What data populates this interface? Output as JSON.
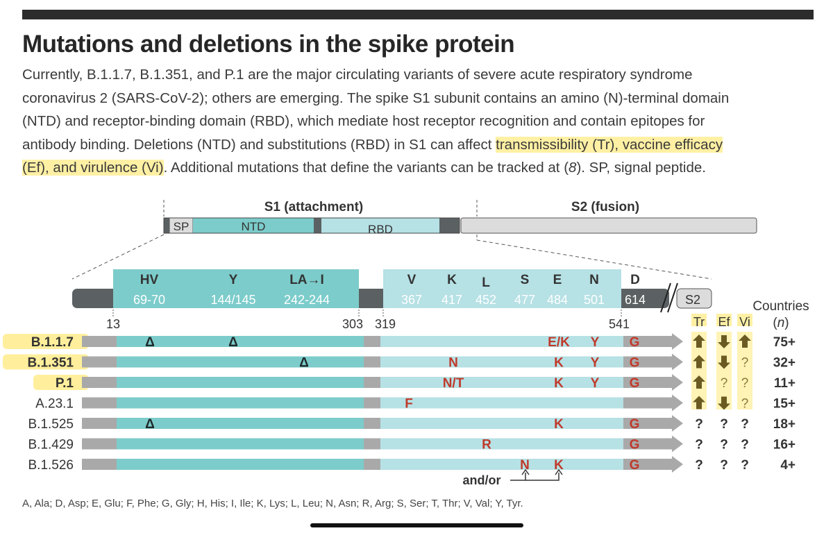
{
  "title": "Mutations and deletions in the spike protein",
  "description": {
    "line1": "Currently, B.1.1.7, B.1.351, and P.1 are the major circulating variants of severe acute respiratory syndrome",
    "line2": "coronavirus 2 (SARS-CoV-2); others are emerging. The spike S1 subunit contains an amino (N)-terminal domain",
    "line3": "(NTD) and receptor-binding domain (RBD), which mediate host receptor recognition and contain epitopes for",
    "line4a": "antibody binding. Deletions (NTD) and substitutions (RBD) in S1 can affect ",
    "line4b": "transmissibility (Tr), vaccine efficacy",
    "line5a": "(Ef), and virulence (Vi)",
    "line5b": ". Additional mutations that define the variants can be tracked at (",
    "line5c": "8",
    "line5d": "). SP, signal peptide."
  },
  "overview": {
    "s1_label": "S1 (attachment)",
    "s2_label": "S2 (fusion)",
    "sp": "SP",
    "ntd": "NTD",
    "rbd": "RBD"
  },
  "detail": {
    "ntd_sites": [
      {
        "aa": "HV",
        "pos": "69-70"
      },
      {
        "aa": "Y",
        "pos": "144/145"
      },
      {
        "aa": "LA→I",
        "pos": "242-244"
      }
    ],
    "rbd_sites": [
      {
        "aa": "V",
        "pos": "367"
      },
      {
        "aa": "K",
        "pos": "417"
      },
      {
        "aa": "L",
        "pos": "452"
      },
      {
        "aa": "S",
        "pos": "477"
      },
      {
        "aa": "E",
        "pos": "484"
      },
      {
        "aa": "N",
        "pos": "501"
      }
    ],
    "d614": {
      "aa": "D",
      "pos": "614"
    },
    "s2": "S2",
    "boundaries": [
      "13",
      "303",
      "319",
      "541"
    ]
  },
  "effects_header": {
    "tr": "Tr",
    "ef": "Ef",
    "vi": "Vi",
    "countries": "Countries",
    "n": "(n)"
  },
  "variants": [
    {
      "name": "B.1.1.7",
      "bold": true,
      "highlight": true,
      "ntd": [
        {
          "col": "hv",
          "text": "Δ"
        },
        {
          "col": "y",
          "text": "Δ"
        }
      ],
      "rbd": [
        {
          "col": "e484",
          "text": "E/K"
        },
        {
          "col": "n501",
          "text": "Y"
        }
      ],
      "g614": "G",
      "tr": "up",
      "ef": "down",
      "vi": "up",
      "countries": "75+"
    },
    {
      "name": "B.1.351",
      "bold": true,
      "highlight": true,
      "ntd": [
        {
          "col": "la",
          "text": "Δ"
        }
      ],
      "rbd": [
        {
          "col": "k417",
          "text": "N"
        },
        {
          "col": "e484",
          "text": "K"
        },
        {
          "col": "n501",
          "text": "Y"
        }
      ],
      "g614": "G",
      "tr": "up",
      "ef": "down",
      "vi": "?",
      "countries": "32+"
    },
    {
      "name": "P.1",
      "bold": true,
      "highlight": true,
      "ntd": [],
      "rbd": [
        {
          "col": "k417",
          "text": "N/T"
        },
        {
          "col": "e484",
          "text": "K"
        },
        {
          "col": "n501",
          "text": "Y"
        }
      ],
      "g614": "G",
      "tr": "up",
      "ef": "?",
      "vi": "?",
      "countries": "11+"
    },
    {
      "name": "A.23.1",
      "bold": false,
      "highlight": false,
      "ntd": [],
      "rbd": [
        {
          "col": "v367",
          "text": "F"
        }
      ],
      "g614": "",
      "tr": "up",
      "ef": "down",
      "vi": "?",
      "countries": "15+"
    },
    {
      "name": "B.1.525",
      "bold": false,
      "highlight": false,
      "ntd": [
        {
          "col": "hv",
          "text": "Δ"
        }
      ],
      "rbd": [
        {
          "col": "e484",
          "text": "K"
        }
      ],
      "g614": "G",
      "tr": "?",
      "ef": "?",
      "vi": "?",
      "countries": "18+"
    },
    {
      "name": "B.1.429",
      "bold": false,
      "highlight": false,
      "ntd": [],
      "rbd": [
        {
          "col": "l452",
          "text": "R"
        }
      ],
      "g614": "G",
      "tr": "?",
      "ef": "?",
      "vi": "?",
      "countries": "16+"
    },
    {
      "name": "B.1.526",
      "bold": false,
      "highlight": false,
      "ntd": [],
      "rbd": [
        {
          "col": "s477",
          "text": "N"
        },
        {
          "col": "e484",
          "text": "K"
        }
      ],
      "g614": "G",
      "tr": "?",
      "ef": "?",
      "vi": "?",
      "countries": "4+"
    }
  ],
  "andor": "and/or",
  "footer": "A, Ala; D, Asp; E, Glu; F, Phe; G, Gly; H, His; I, Ile; K, Lys; L, Leu; N, Asn; R, Arg; S, Ser; T, Thr; V, Val; Y, Tyr.",
  "colors": {
    "ntd": "#7ccccb",
    "rbd": "#b6e1e5",
    "dark": "#5b6163",
    "grey": "#a9a9a9",
    "s2": "#dcdcdc",
    "mut": "#c0392b",
    "arrow": "#6b5a22",
    "highlight": "#ffe35a"
  }
}
